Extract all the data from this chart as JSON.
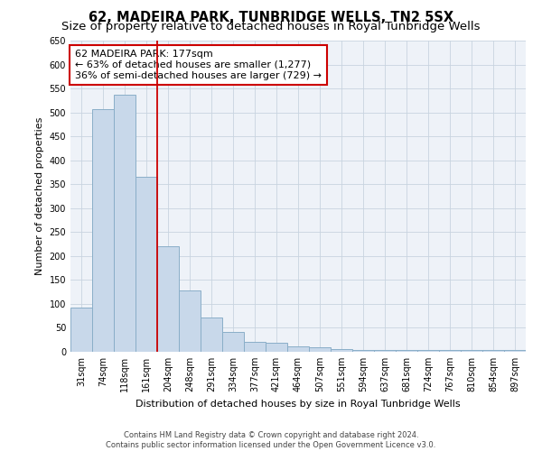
{
  "title": "62, MADEIRA PARK, TUNBRIDGE WELLS, TN2 5SX",
  "subtitle": "Size of property relative to detached houses in Royal Tunbridge Wells",
  "xlabel": "Distribution of detached houses by size in Royal Tunbridge Wells",
  "ylabel": "Number of detached properties",
  "categories": [
    "31sqm",
    "74sqm",
    "118sqm",
    "161sqm",
    "204sqm",
    "248sqm",
    "291sqm",
    "334sqm",
    "377sqm",
    "421sqm",
    "464sqm",
    "507sqm",
    "551sqm",
    "594sqm",
    "637sqm",
    "681sqm",
    "724sqm",
    "767sqm",
    "810sqm",
    "854sqm",
    "897sqm"
  ],
  "values": [
    93,
    507,
    537,
    365,
    220,
    128,
    72,
    41,
    20,
    19,
    11,
    10,
    6,
    4,
    4,
    4,
    4,
    4,
    4,
    4,
    4
  ],
  "bar_color": "#c8d8ea",
  "bar_edge_color": "#8aaec8",
  "bar_linewidth": 0.7,
  "vline_x": 3.5,
  "vline_color": "#cc0000",
  "vline_linewidth": 1.3,
  "ylim": [
    0,
    650
  ],
  "yticks": [
    0,
    50,
    100,
    150,
    200,
    250,
    300,
    350,
    400,
    450,
    500,
    550,
    600,
    650
  ],
  "annotation_title": "62 MADEIRA PARK: 177sqm",
  "annotation_line1": "← 63% of detached houses are smaller (1,277)",
  "annotation_line2": "36% of semi-detached houses are larger (729) →",
  "annotation_box_facecolor": "#ffffff",
  "annotation_box_edgecolor": "#cc0000",
  "grid_color": "#c8d4e0",
  "bg_color": "#eef2f8",
  "footer1": "Contains HM Land Registry data © Crown copyright and database right 2024.",
  "footer2": "Contains public sector information licensed under the Open Government Licence v3.0.",
  "title_fontsize": 10.5,
  "subtitle_fontsize": 9.5,
  "xlabel_fontsize": 8,
  "ylabel_fontsize": 8,
  "tick_fontsize": 7,
  "annotation_fontsize": 8,
  "footer_fontsize": 6
}
